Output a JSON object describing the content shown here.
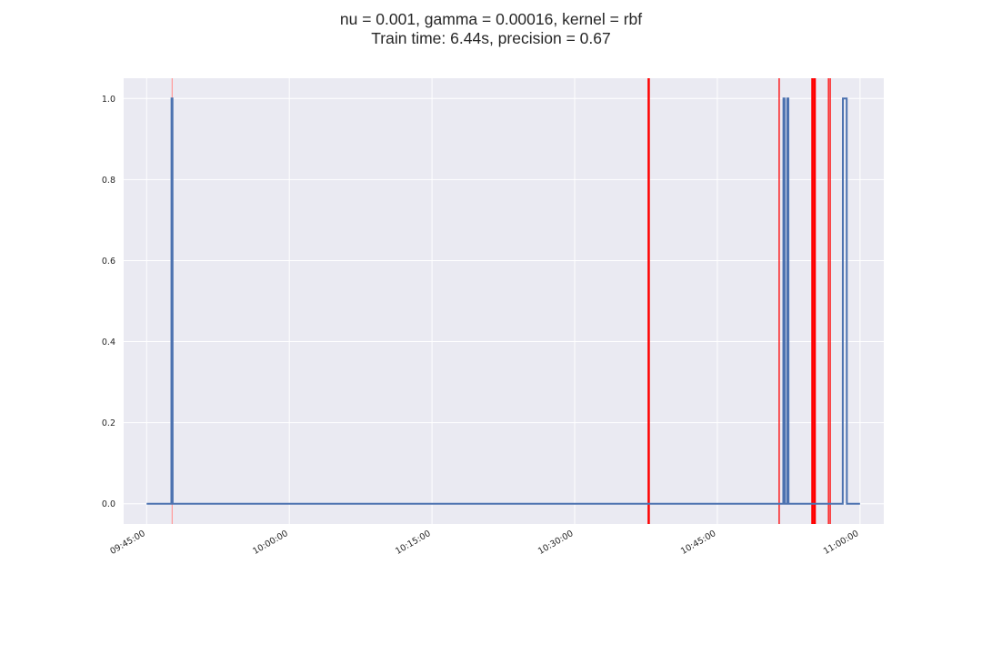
{
  "chart_data": {
    "type": "line",
    "title": "nu = 0.001, gamma = 0.00016, kernel = rbf",
    "subtitle": "Train time: 6.44s, precision = 0.67",
    "xlabel": "",
    "ylabel": "",
    "x_axis_type": "time",
    "xlim": [
      "09:45:00",
      "11:00:00"
    ],
    "xlim_padded": [
      "09:42:35",
      "11:02:30"
    ],
    "ylim": [
      -0.05,
      1.05
    ],
    "x_ticks": [
      "09:45:00",
      "10:00:00",
      "10:15:00",
      "10:30:00",
      "10:45:00",
      "11:00:00"
    ],
    "y_ticks": [
      "0.0",
      "0.2",
      "0.4",
      "0.6",
      "0.8",
      "1.0"
    ],
    "y_tick_values": [
      0.0,
      0.2,
      0.4,
      0.6,
      0.8,
      1.0
    ],
    "grid": true,
    "legend": "none",
    "series": [
      {
        "color": "#4C72B0",
        "points": [
          [
            "09:45:00",
            0
          ],
          [
            "09:47:36",
            0
          ],
          [
            "09:47:37",
            1
          ],
          [
            "09:47:43",
            1
          ],
          [
            "09:47:44",
            0
          ],
          [
            "10:51:56",
            0
          ],
          [
            "10:51:57",
            1
          ],
          [
            "10:52:04",
            1
          ],
          [
            "10:52:05",
            0
          ],
          [
            "10:52:20",
            0
          ],
          [
            "10:52:21",
            1
          ],
          [
            "10:52:28",
            1
          ],
          [
            "10:52:29",
            0
          ],
          [
            "10:58:11",
            0
          ],
          [
            "10:58:12",
            1
          ],
          [
            "10:58:36",
            1
          ],
          [
            "10:58:37",
            0
          ],
          [
            "11:00:00",
            0
          ]
        ]
      }
    ],
    "vertical_markers": [
      {
        "time": "09:47:41",
        "color": "#ff9a9a",
        "width": 1.2
      },
      {
        "time": "10:37:47",
        "color": "#ff0000",
        "width": 2.5
      },
      {
        "time": "10:51:30",
        "color": "#ff0000",
        "width": 1.3
      },
      {
        "time": "10:55:00",
        "color": "#ff0000",
        "width": 2.6
      },
      {
        "time": "10:55:14",
        "color": "#ff0000",
        "width": 2.6
      },
      {
        "time": "10:56:41",
        "color": "#ff0000",
        "width": 1.3
      },
      {
        "time": "10:56:52",
        "color": "#ff0000",
        "width": 1.3
      }
    ],
    "colors": {
      "plot_background": "#EAEAF2",
      "grid": "#ffffff",
      "line": "#4C72B0",
      "marker": "#ff0000"
    }
  }
}
